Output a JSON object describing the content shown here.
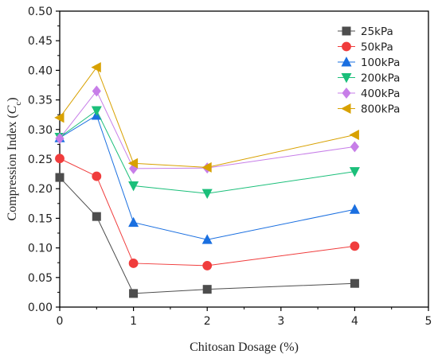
{
  "chart_data": {
    "type": "line",
    "xlabel": "Chitosan Dosage (%)",
    "ylabel_main": "Compression Index (",
    "ylabel_symbol": "C",
    "ylabel_sub": "c",
    "ylabel_end": ")",
    "xlim": [
      0,
      5
    ],
    "ylim": [
      0,
      0.5
    ],
    "xticks": [
      0,
      1,
      2,
      3,
      4,
      5
    ],
    "xtick_labels": [
      "0",
      "1",
      "2",
      "3",
      "4",
      "5"
    ],
    "yticks": [
      0,
      0.05,
      0.1,
      0.15,
      0.2,
      0.25,
      0.3,
      0.35,
      0.4,
      0.45,
      0.5
    ],
    "ytick_labels": [
      "0.00",
      "0.05",
      "0.10",
      "0.15",
      "0.20",
      "0.25",
      "0.30",
      "0.35",
      "0.40",
      "0.45",
      "0.50"
    ],
    "grid": false,
    "legend_position": "top-right",
    "x": [
      0,
      0.5,
      1,
      2,
      4
    ],
    "series": [
      {
        "name": "25kPa",
        "color": "#4d4d4d",
        "marker": "square",
        "values": [
          0.219,
          0.153,
          0.023,
          0.03,
          0.04
        ]
      },
      {
        "name": "50kPa",
        "color": "#f03c3c",
        "marker": "circle",
        "values": [
          0.251,
          0.221,
          0.074,
          0.07,
          0.103
        ]
      },
      {
        "name": "100kPa",
        "color": "#1a6fe0",
        "marker": "triangle-up",
        "values": [
          0.286,
          0.324,
          0.143,
          0.114,
          0.165
        ]
      },
      {
        "name": "200kPa",
        "color": "#1bbf7a",
        "marker": "triangle-down",
        "values": [
          0.287,
          0.332,
          0.205,
          0.192,
          0.229
        ]
      },
      {
        "name": "400kPa",
        "color": "#c77ee8",
        "marker": "diamond",
        "values": [
          0.285,
          0.365,
          0.234,
          0.235,
          0.271
        ]
      },
      {
        "name": "800kPa",
        "color": "#d8a100",
        "marker": "triangle-left",
        "values": [
          0.32,
          0.405,
          0.243,
          0.236,
          0.291
        ]
      }
    ]
  }
}
